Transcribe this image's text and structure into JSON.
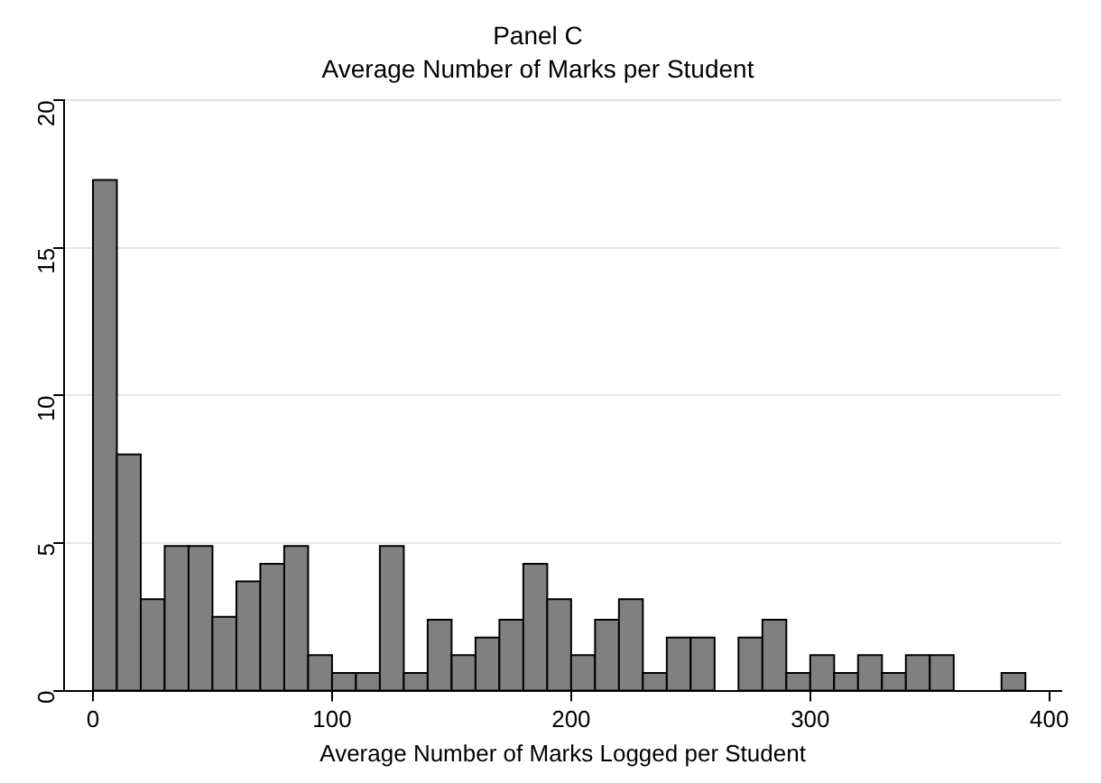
{
  "chart_data": {
    "type": "histogram",
    "title": "Panel C",
    "subtitle": "Average Number of Marks per Student",
    "xlabel": "Average Number of Marks Logged per Student",
    "bins": [
      0,
      10,
      20,
      30,
      40,
      50,
      60,
      70,
      80,
      90,
      100,
      110,
      120,
      130,
      140,
      150,
      160,
      170,
      180,
      190,
      200,
      210,
      220,
      230,
      240,
      250,
      260,
      270,
      280,
      290,
      300,
      310,
      320,
      330,
      340,
      350,
      360,
      370,
      380,
      390
    ],
    "values": [
      17.3,
      8,
      3.1,
      4.9,
      4.9,
      2.5,
      3.7,
      4.3,
      4.9,
      1.2,
      0.6,
      0.6,
      4.9,
      0.6,
      2.4,
      1.2,
      1.8,
      2.4,
      4.3,
      3.1,
      1.2,
      2.4,
      3.1,
      0.6,
      1.8,
      1.8,
      0,
      1.8,
      2.4,
      0.6,
      1.2,
      0.6,
      1.2,
      0.6,
      1.2,
      1.2,
      0,
      0,
      0.6
    ],
    "color": "#808080",
    "xlim": [
      -12,
      405
    ],
    "xticks": [
      0,
      100,
      200,
      300,
      400
    ],
    "ylim": [
      0,
      20
    ],
    "yticks": [
      0,
      5,
      10,
      15,
      20
    ],
    "grid": "y",
    "legend": false
  }
}
